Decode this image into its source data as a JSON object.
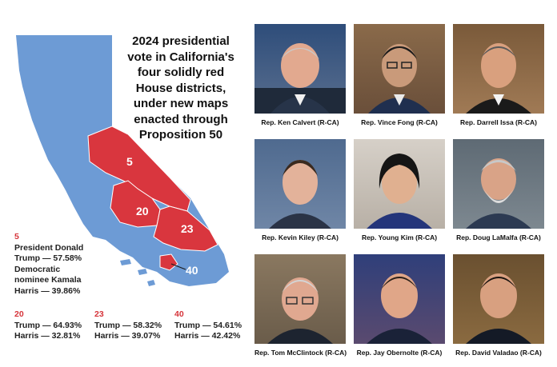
{
  "title": "2024 presidential vote in California's four solidly red House districts, under new maps enacted through Proposition 50",
  "colors": {
    "state": "#6d9bd5",
    "district": "#d9363e",
    "label": "#d6343a"
  },
  "districts": [
    {
      "number": "5",
      "lines": [
        "President Donald",
        "Trump — 57.58%",
        "Democratic",
        "nominee Kamala",
        "Harris — 39.86%"
      ]
    },
    {
      "number": "20",
      "lines": [
        "Trump — 64.93%",
        "Harris — 32.81%"
      ]
    },
    {
      "number": "23",
      "lines": [
        "Trump — 58.32%",
        "Harris — 39.07%"
      ]
    },
    {
      "number": "40",
      "lines": [
        "Trump — 54.61%",
        "Harris — 42.42%"
      ]
    }
  ],
  "representatives": [
    {
      "caption": "Rep. Ken Calvert (R-CA)"
    },
    {
      "caption": "Rep. Vince Fong (R-CA)"
    },
    {
      "caption": "Rep. Darrell Issa (R-CA)"
    },
    {
      "caption": "Rep. Kevin Kiley (R-CA)"
    },
    {
      "caption": "Rep. Young Kim (R-CA)"
    },
    {
      "caption": "Rep. Doug LaMalfa (R-CA)"
    },
    {
      "caption": "Rep. Tom McClintock (R-CA)"
    },
    {
      "caption": "Rep. Jay Obernolte (R-CA)"
    },
    {
      "caption": "Rep. David Valadao (R-CA)"
    }
  ]
}
